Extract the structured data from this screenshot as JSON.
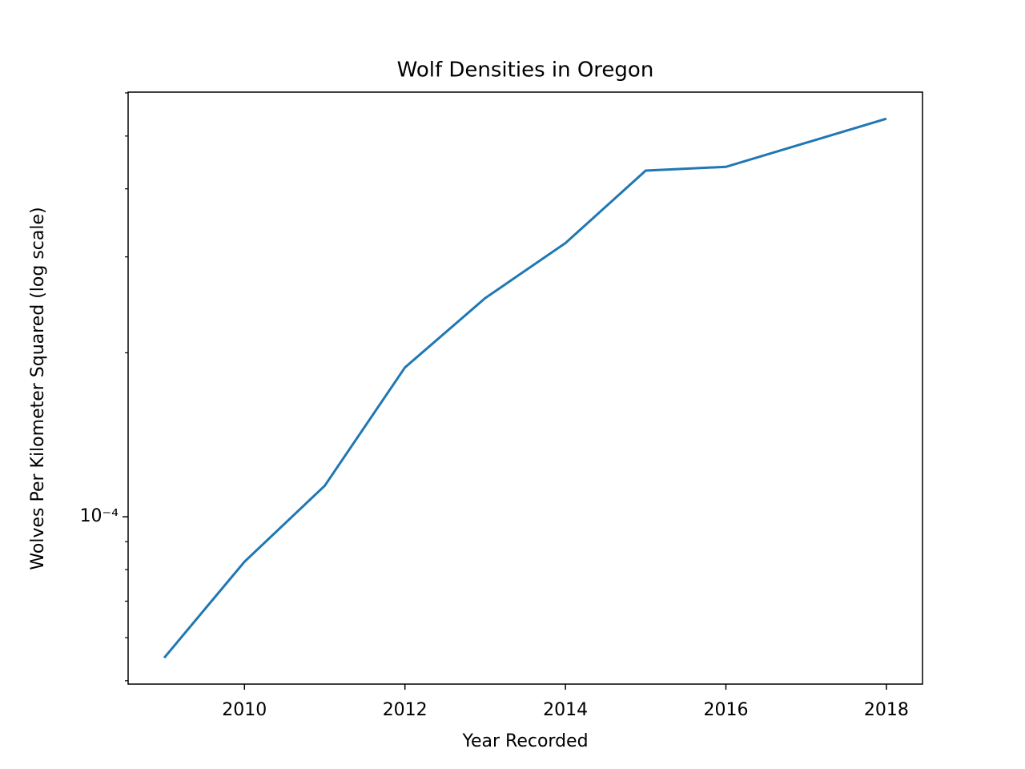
{
  "chart_data": {
    "type": "line",
    "title": "Wolf Densities in Oregon",
    "x_label": "Year Recorded",
    "y_label": "Wolves Per Kilometer Squared (log scale)",
    "x": [
      2009,
      2010,
      2011,
      2012,
      2013,
      2014,
      2015,
      2016,
      2017,
      2018
    ],
    "series": [
      {
        "color": "#1f77b4",
        "values": [
          5.51e-05,
          8.27e-05,
          0.000114,
          0.000188,
          0.000252,
          0.000318,
          0.000432,
          0.000439,
          0.000486,
          0.000538
        ]
      }
    ],
    "xlim": [
      2008.55,
      2018.45
    ],
    "xticks": [
      2010,
      2012,
      2014,
      2016,
      2018
    ],
    "ylim": [
      4.93e-05,
      0.000602
    ],
    "yscale": "log",
    "yticks": [
      {
        "value": 0.0001,
        "label": "10⁻⁴"
      }
    ],
    "y_minor_ticks": [
      5e-05,
      6e-05,
      7e-05,
      8e-05,
      9e-05,
      0.0002,
      0.0003,
      0.0004,
      0.0005,
      0.0006
    ],
    "grid": false
  }
}
